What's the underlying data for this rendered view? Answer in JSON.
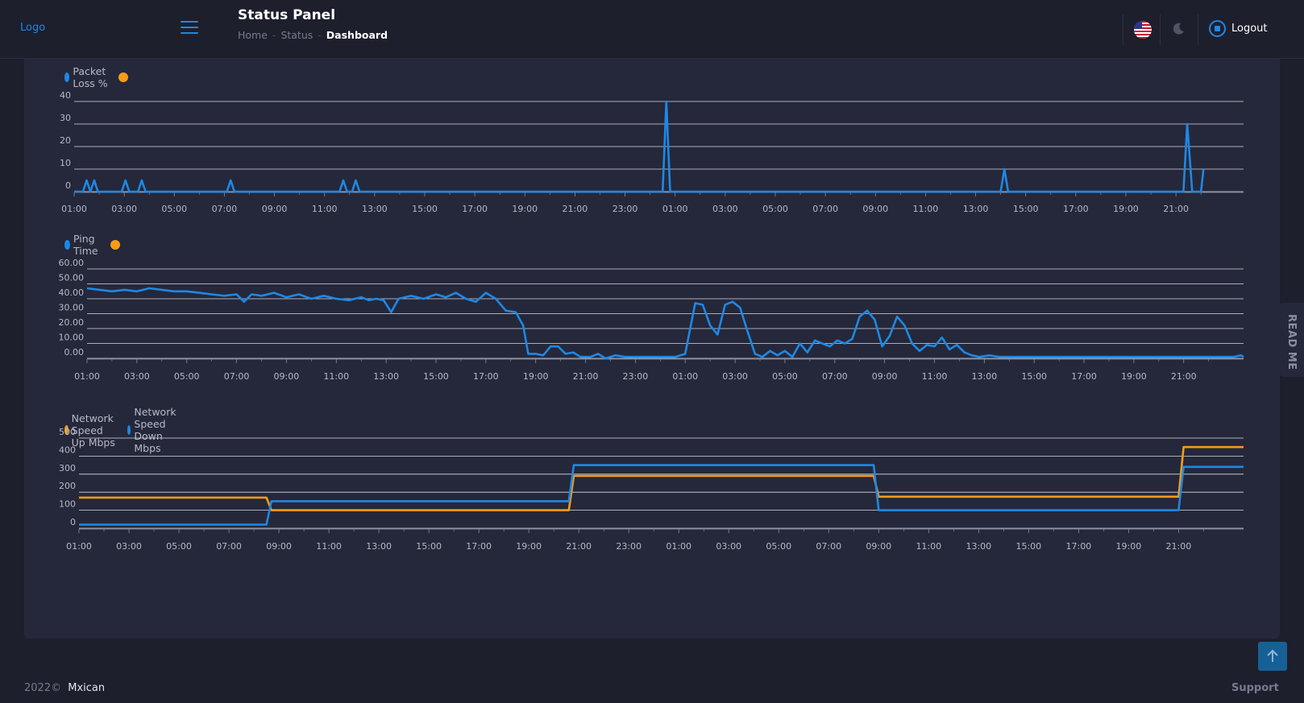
{
  "header": {
    "logo": "Logo",
    "page_title": "Status Panel",
    "breadcrumb": [
      {
        "label": "Home"
      },
      {
        "label": "Status"
      },
      {
        "label": "Dashboard"
      }
    ],
    "breadcrumb_sep": "-",
    "logout_label": "Logout",
    "icons": [
      "menu-icon",
      "us-flag-icon",
      "moon-icon",
      "logout-icon"
    ]
  },
  "colors": {
    "accent": "#1e88e5",
    "series_blue": "#1e88e5",
    "series_orange": "#f59c1a",
    "background": "#1d1f2c",
    "card": "#25283a"
  },
  "toolbar_icons": [
    "zoom-in-icon",
    "zoom-out-icon",
    "zoom-select-icon",
    "pan-icon",
    "reset-home-icon",
    "menu-lines-icon"
  ],
  "x_ticks": [
    "01:00",
    "03:00",
    "05:00",
    "07:00",
    "09:00",
    "11:00",
    "13:00",
    "15:00",
    "17:00",
    "19:00",
    "21:00",
    "23:00",
    "01:00",
    "03:00",
    "05:00",
    "07:00",
    "09:00",
    "11:00",
    "13:00",
    "15:00",
    "17:00",
    "19:00",
    "21:00"
  ],
  "chart_data": [
    {
      "type": "line",
      "legend": [
        {
          "label": "Packet Loss %",
          "color": "#1e88e5"
        },
        {
          "label": "",
          "color": "#f59c1a"
        }
      ],
      "ylim": [
        0,
        40
      ],
      "y_ticks": [
        "40",
        "30",
        "20",
        "10",
        "0"
      ],
      "x_range_hours": 46.7,
      "series": [
        {
          "name": "Packet Loss %",
          "color": "#1e88e5",
          "points": [
            [
              0,
              0
            ],
            [
              0.35,
              0
            ],
            [
              0.5,
              5
            ],
            [
              0.65,
              0
            ],
            [
              0.8,
              5
            ],
            [
              0.95,
              0
            ],
            [
              1.9,
              0
            ],
            [
              2.05,
              5
            ],
            [
              2.2,
              0
            ],
            [
              2.55,
              0
            ],
            [
              2.7,
              5
            ],
            [
              2.85,
              0
            ],
            [
              6.1,
              0
            ],
            [
              6.25,
              5
            ],
            [
              6.4,
              0
            ],
            [
              10.6,
              0
            ],
            [
              10.75,
              5
            ],
            [
              10.9,
              0
            ],
            [
              11.1,
              0
            ],
            [
              11.25,
              5
            ],
            [
              11.4,
              0
            ],
            [
              23.5,
              0
            ],
            [
              23.65,
              40
            ],
            [
              23.8,
              0
            ],
            [
              37.0,
              0
            ],
            [
              37.15,
              10
            ],
            [
              37.3,
              0
            ],
            [
              44.3,
              0
            ],
            [
              44.45,
              30
            ],
            [
              44.65,
              0
            ],
            [
              45.0,
              0
            ],
            [
              45.1,
              10
            ]
          ]
        }
      ]
    },
    {
      "type": "line",
      "legend": [
        {
          "label": "Ping Time",
          "color": "#1e88e5"
        },
        {
          "label": "",
          "color": "#f59c1a"
        }
      ],
      "ylim": [
        0,
        60
      ],
      "y_ticks": [
        "60.00",
        "50.00",
        "40.00",
        "30.00",
        "20.00",
        "10.00",
        "0.00"
      ],
      "x_range_hours": 46.4,
      "series": [
        {
          "name": "Ping Time",
          "color": "#1e88e5",
          "points": [
            [
              0,
              47
            ],
            [
              0.5,
              46
            ],
            [
              1,
              45
            ],
            [
              1.5,
              46
            ],
            [
              2,
              45
            ],
            [
              2.5,
              47
            ],
            [
              3,
              46
            ],
            [
              3.5,
              45
            ],
            [
              4,
              45
            ],
            [
              4.5,
              44
            ],
            [
              5,
              43
            ],
            [
              5.5,
              42
            ],
            [
              6,
              43
            ],
            [
              6.3,
              38
            ],
            [
              6.6,
              43
            ],
            [
              7,
              42
            ],
            [
              7.5,
              44
            ],
            [
              8,
              41
            ],
            [
              8.5,
              43
            ],
            [
              9,
              40
            ],
            [
              9.5,
              42
            ],
            [
              10,
              40
            ],
            [
              10.5,
              39
            ],
            [
              11,
              41
            ],
            [
              11.3,
              39
            ],
            [
              11.6,
              40
            ],
            [
              11.9,
              39
            ],
            [
              12.2,
              31
            ],
            [
              12.5,
              40
            ],
            [
              13,
              42
            ],
            [
              13.5,
              40
            ],
            [
              14,
              43
            ],
            [
              14.4,
              41
            ],
            [
              14.8,
              44
            ],
            [
              15.2,
              40
            ],
            [
              15.6,
              38
            ],
            [
              16,
              44
            ],
            [
              16.4,
              40
            ],
            [
              16.8,
              32
            ],
            [
              17.2,
              31
            ],
            [
              17.5,
              22
            ],
            [
              17.7,
              3
            ],
            [
              18,
              3
            ],
            [
              18.3,
              2
            ],
            [
              18.6,
              8
            ],
            [
              18.9,
              8
            ],
            [
              19.2,
              3
            ],
            [
              19.5,
              4
            ],
            [
              19.8,
              1
            ],
            [
              20.2,
              1
            ],
            [
              20.5,
              3
            ],
            [
              20.8,
              0
            ],
            [
              21.2,
              2
            ],
            [
              21.6,
              1
            ],
            [
              22,
              1
            ],
            [
              22.5,
              1
            ],
            [
              23,
              1
            ],
            [
              23.6,
              1
            ],
            [
              24,
              3
            ],
            [
              24.2,
              20
            ],
            [
              24.4,
              37
            ],
            [
              24.7,
              36
            ],
            [
              25,
              22
            ],
            [
              25.3,
              16
            ],
            [
              25.6,
              36
            ],
            [
              25.9,
              38
            ],
            [
              26.2,
              34
            ],
            [
              26.5,
              18
            ],
            [
              26.8,
              3
            ],
            [
              27.1,
              1
            ],
            [
              27.4,
              5
            ],
            [
              27.7,
              2
            ],
            [
              28,
              5
            ],
            [
              28.3,
              1
            ],
            [
              28.6,
              10
            ],
            [
              28.9,
              4
            ],
            [
              29.2,
              12
            ],
            [
              29.5,
              10
            ],
            [
              29.8,
              8
            ],
            [
              30.1,
              12
            ],
            [
              30.4,
              10
            ],
            [
              30.7,
              13
            ],
            [
              31,
              28
            ],
            [
              31.3,
              32
            ],
            [
              31.6,
              26
            ],
            [
              31.9,
              8
            ],
            [
              32.2,
              15
            ],
            [
              32.5,
              28
            ],
            [
              32.8,
              22
            ],
            [
              33.1,
              10
            ],
            [
              33.4,
              5
            ],
            [
              33.7,
              9
            ],
            [
              34,
              8
            ],
            [
              34.3,
              14
            ],
            [
              34.6,
              6
            ],
            [
              34.9,
              9
            ],
            [
              35.2,
              4
            ],
            [
              35.5,
              2
            ],
            [
              35.8,
              1
            ],
            [
              36.2,
              2
            ],
            [
              36.6,
              1
            ],
            [
              37,
              1
            ],
            [
              37.5,
              1
            ],
            [
              38,
              1
            ],
            [
              39,
              1
            ],
            [
              40,
              1
            ],
            [
              41,
              1
            ],
            [
              42,
              1
            ],
            [
              43,
              1
            ],
            [
              44,
              1
            ],
            [
              45,
              1
            ],
            [
              46,
              1
            ],
            [
              46.3,
              2
            ],
            [
              46.4,
              1
            ]
          ]
        }
      ]
    },
    {
      "type": "line",
      "legend": [
        {
          "label": "Network Speed Up Mbps",
          "color": "#f59c1a"
        },
        {
          "label": "Network Speed Down Mbps",
          "color": "#1e88e5"
        }
      ],
      "ylim": [
        0,
        500
      ],
      "y_ticks": [
        "500",
        "400",
        "300",
        "200",
        "100",
        "0"
      ],
      "x_range_hours": 46.6,
      "series": [
        {
          "name": "Network Speed Up Mbps",
          "color": "#f59c1a",
          "points": [
            [
              0,
              170
            ],
            [
              7.5,
              170
            ],
            [
              7.7,
              100
            ],
            [
              19.6,
              100
            ],
            [
              19.8,
              290
            ],
            [
              31.8,
              290
            ],
            [
              32,
              175
            ],
            [
              44,
              175
            ],
            [
              44.2,
              450
            ],
            [
              46.6,
              450
            ]
          ]
        },
        {
          "name": "Network Speed Down Mbps",
          "color": "#1e88e5",
          "points": [
            [
              0,
              20
            ],
            [
              7.5,
              20
            ],
            [
              7.7,
              150
            ],
            [
              19.6,
              150
            ],
            [
              19.8,
              350
            ],
            [
              31.8,
              350
            ],
            [
              32,
              100
            ],
            [
              44,
              100
            ],
            [
              44.2,
              340
            ],
            [
              46.6,
              340
            ]
          ]
        }
      ]
    }
  ],
  "readme_label": "READ ME",
  "footer": {
    "year": "2022©",
    "brand": "Mxican",
    "support": "Support"
  }
}
